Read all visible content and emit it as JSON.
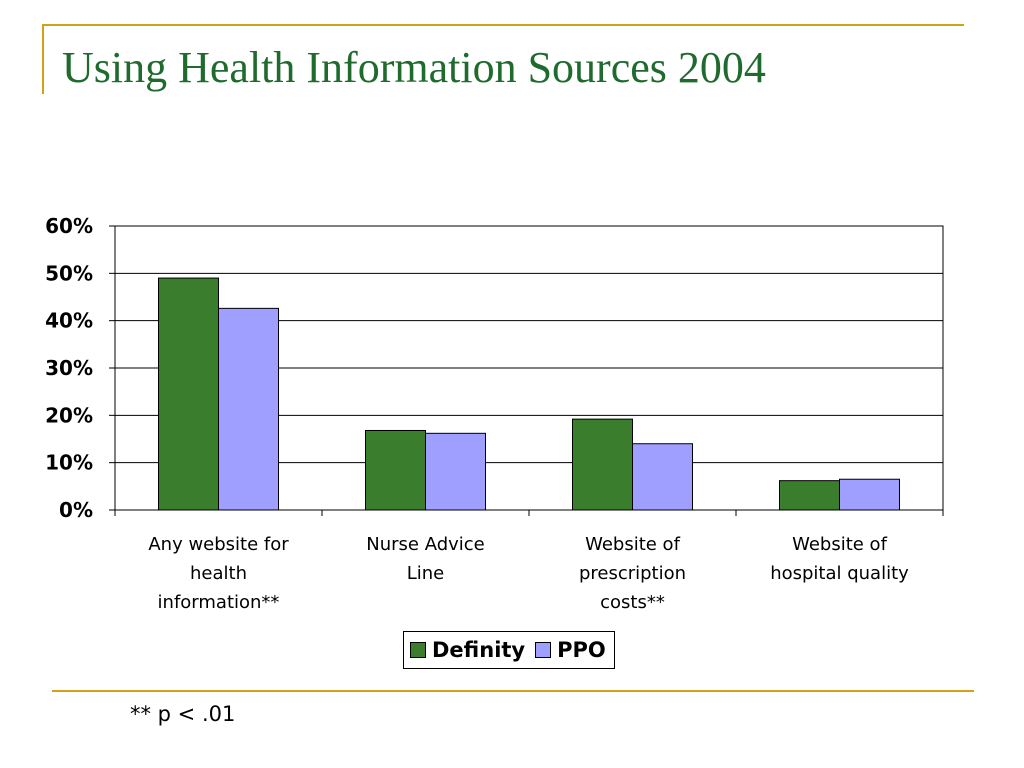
{
  "slide": {
    "title": "Using Health Information Sources 2004",
    "footnote": "** p < .01"
  },
  "colors": {
    "accent_rule": "#d4a017",
    "title": "#1f6b2e",
    "definity": "#3a7d2c",
    "ppo": "#9f9fff"
  },
  "chart_data": {
    "type": "bar",
    "categories": [
      "Any website for health information**",
      "Nurse Advice Line",
      "Website of prescription costs**",
      "Website of hospital quality"
    ],
    "category_label_lines": [
      [
        "Any website for",
        "health",
        "information**"
      ],
      [
        "Nurse Advice",
        "Line"
      ],
      [
        "Website of",
        "prescription",
        "costs**"
      ],
      [
        "Website of",
        "hospital quality"
      ]
    ],
    "series": [
      {
        "name": "Definity",
        "values": [
          49,
          16.8,
          19.2,
          6.2
        ],
        "color": "#3a7d2c"
      },
      {
        "name": "PPO",
        "values": [
          42.6,
          16.2,
          14,
          6.5
        ],
        "color": "#9f9fff"
      }
    ],
    "ylim": [
      0,
      60
    ],
    "yticks": [
      "0%",
      "10%",
      "20%",
      "30%",
      "40%",
      "50%",
      "60%"
    ],
    "ytick_values": [
      0,
      10,
      20,
      30,
      40,
      50,
      60
    ],
    "grid": true,
    "legend_position": "bottom"
  }
}
